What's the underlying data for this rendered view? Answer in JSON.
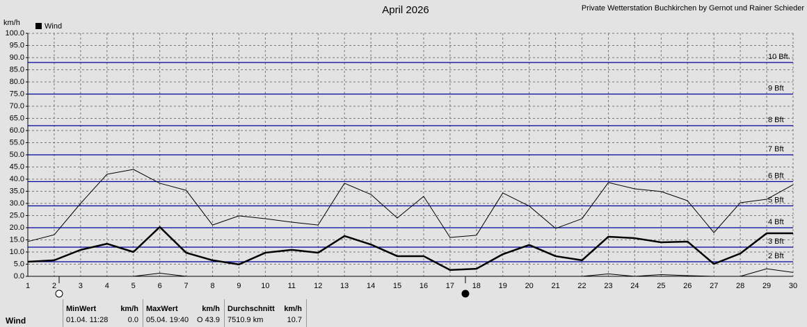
{
  "chart_data": {
    "type": "line",
    "title": "April 2026",
    "subtitle": "Private Wetterstation Buchkirchen by Gernot und Rainer Schieder",
    "y_label": "km/h",
    "categories": [
      "1",
      "2",
      "3",
      "4",
      "5",
      "6",
      "7",
      "8",
      "9",
      "10",
      "11",
      "12",
      "13",
      "14",
      "15",
      "16",
      "17",
      "18",
      "19",
      "20",
      "21",
      "22",
      "23",
      "24",
      "25",
      "26",
      "27",
      "28",
      "29",
      "30"
    ],
    "ylim": [
      0,
      100
    ],
    "yticks": [
      {
        "value": 0,
        "label": "0.0"
      },
      {
        "value": 5,
        "label": "5.0"
      },
      {
        "value": 10,
        "label": "10.0"
      },
      {
        "value": 15,
        "label": "15.0"
      },
      {
        "value": 20,
        "label": "20.0"
      },
      {
        "value": 25,
        "label": "25.0"
      },
      {
        "value": 30,
        "label": "30.0"
      },
      {
        "value": 35,
        "label": "35.0"
      },
      {
        "value": 40,
        "label": "40.0"
      },
      {
        "value": 45,
        "label": "45.0"
      },
      {
        "value": 50,
        "label": "50.0"
      },
      {
        "value": 55,
        "label": "55.0"
      },
      {
        "value": 60,
        "label": "60.0"
      },
      {
        "value": 65,
        "label": "65.0"
      },
      {
        "value": 70,
        "label": "70.0"
      },
      {
        "value": 75,
        "label": "75.0"
      },
      {
        "value": 80,
        "label": "80.0"
      },
      {
        "value": 85,
        "label": "85.0"
      },
      {
        "value": 90,
        "label": "90.0"
      },
      {
        "value": 95,
        "label": "95.0"
      },
      {
        "value": 100,
        "label": "100.0"
      }
    ],
    "grid": true,
    "reference_color": "#0000a0",
    "reference_lines": [
      {
        "value": 6,
        "label": "2 Bft"
      },
      {
        "value": 12,
        "label": "3 Bft"
      },
      {
        "value": 20,
        "label": "4 Bft"
      },
      {
        "value": 29,
        "label": "5 Bft"
      },
      {
        "value": 39,
        "label": "6 Bft"
      },
      {
        "value": 50,
        "label": "7 Bft"
      },
      {
        "value": 62,
        "label": "8 Bft"
      },
      {
        "value": 75,
        "label": "9 Bft"
      },
      {
        "value": 88,
        "label": "10 Bft."
      }
    ],
    "series": [
      {
        "name": "Wind",
        "color": "#000000",
        "width": 2.5,
        "values": [
          6,
          6.6,
          10.9,
          13.4,
          10,
          20.3,
          9.7,
          6.6,
          4.9,
          9.7,
          10.9,
          9.7,
          16.6,
          13.1,
          8.3,
          8.3,
          2.6,
          3.1,
          9.1,
          12.9,
          8.3,
          6.6,
          16.3,
          15.7,
          14,
          14.3,
          5.1,
          9.4,
          17.7,
          17.7
        ]
      },
      {
        "color": "#000000",
        "width": 1,
        "values": [
          14.3,
          17.1,
          30,
          42,
          44,
          38.3,
          35.4,
          21.1,
          24.9,
          23.7,
          22.3,
          21.1,
          38.3,
          33.7,
          24,
          32.9,
          16,
          16.9,
          34.3,
          28.9,
          19.7,
          23.7,
          38.6,
          36,
          34.9,
          31.1,
          18,
          30.3,
          31.7,
          37.7
        ]
      },
      {
        "color": "#000000",
        "width": 1,
        "values": [
          0,
          0,
          0,
          0,
          0,
          1.3,
          0,
          0,
          0,
          0,
          0,
          0,
          0,
          0,
          0,
          0,
          0,
          0,
          0,
          0,
          0,
          0,
          1,
          0,
          0.7,
          0.3,
          0,
          0,
          3.1,
          1.6
        ]
      }
    ]
  },
  "summary": {
    "label": "Wind",
    "columns": [
      {
        "header": "MinWert",
        "unit": "km/h",
        "date": "01.04.  11:28",
        "value": "0.0"
      },
      {
        "header": "MaxWert",
        "unit": "km/h",
        "date": "05.04.  19:40",
        "value": "O 43.9"
      },
      {
        "header": "Durchschnitt",
        "unit": "km/h",
        "date": "7510.9 km",
        "value": "10.7"
      }
    ]
  }
}
